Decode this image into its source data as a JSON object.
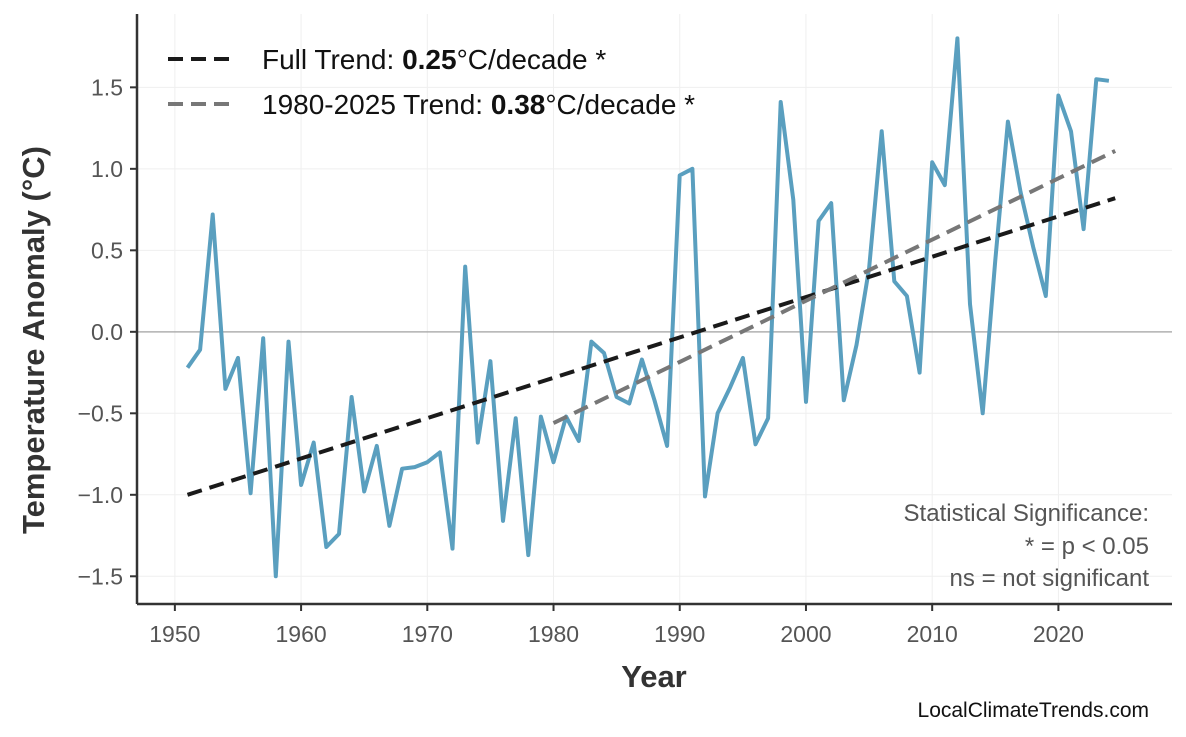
{
  "chart_data": {
    "type": "line",
    "xlabel": "Year",
    "ylabel": "Temperature Anomaly (°C)",
    "xlim": [
      1947,
      2029
    ],
    "ylim": [
      -1.67,
      1.95
    ],
    "xticks": [
      1950,
      1960,
      1970,
      1980,
      1990,
      2000,
      2010,
      2020
    ],
    "yticks": [
      -1.5,
      -1.0,
      -0.5,
      0.0,
      0.5,
      1.0,
      1.5
    ],
    "ytick_labels": [
      "−1.5",
      "−1.0",
      "−0.5",
      "0.0",
      "0.5",
      "1.0",
      "1.5"
    ],
    "xtick_labels": [
      "1950",
      "1960",
      "1970",
      "1980",
      "1990",
      "2000",
      "2010",
      "2020"
    ],
    "grid": true,
    "zero_line": true,
    "series": [
      {
        "color": "#5a9fbf",
        "x": [
          1951,
          1952,
          1953,
          1954,
          1955,
          1956,
          1957,
          1958,
          1959,
          1960,
          1961,
          1962,
          1963,
          1964,
          1965,
          1966,
          1967,
          1968,
          1969,
          1970,
          1971,
          1972,
          1973,
          1974,
          1975,
          1976,
          1977,
          1978,
          1979,
          1980,
          1981,
          1982,
          1983,
          1984,
          1985,
          1986,
          1987,
          1988,
          1989,
          1990,
          1991,
          1992,
          1993,
          1994,
          1995,
          1996,
          1997,
          1998,
          1999,
          2000,
          2001,
          2002,
          2003,
          2004,
          2005,
          2006,
          2007,
          2008,
          2009,
          2010,
          2011,
          2012,
          2013,
          2014,
          2015,
          2016,
          2017,
          2018,
          2019,
          2020,
          2021,
          2022,
          2023,
          2024
        ],
        "y": [
          -0.22,
          -0.11,
          0.72,
          -0.35,
          -0.16,
          -0.99,
          -0.04,
          -1.5,
          -0.06,
          -0.94,
          -0.68,
          -1.32,
          -1.24,
          -0.4,
          -0.98,
          -0.7,
          -1.19,
          -0.84,
          -0.83,
          -0.8,
          -0.74,
          -1.33,
          0.4,
          -0.68,
          -0.18,
          -1.16,
          -0.53,
          -1.37,
          -0.52,
          -0.8,
          -0.52,
          -0.67,
          -0.06,
          -0.13,
          -0.4,
          -0.44,
          -0.17,
          -0.42,
          -0.7,
          0.96,
          1.0,
          -1.01,
          -0.5,
          -0.34,
          -0.16,
          -0.69,
          -0.53,
          1.41,
          0.81,
          -0.43,
          0.68,
          0.79,
          -0.42,
          -0.08,
          0.39,
          1.23,
          0.31,
          0.22,
          -0.25,
          1.04,
          0.9,
          1.8,
          0.17,
          -0.5,
          0.44,
          1.29,
          0.86,
          0.52,
          0.22,
          1.45,
          1.23,
          0.63,
          1.55,
          1.54
        ]
      },
      {
        "name": "Full Trend",
        "color": "#1a1a1a",
        "dash": true,
        "x": [
          1951,
          2024.5
        ],
        "y": [
          -1.0,
          0.82
        ]
      },
      {
        "name": "1980-2025 Trend",
        "color": "#777777",
        "dash": true,
        "x": [
          1980,
          2024.5
        ],
        "y": [
          -0.56,
          1.11
        ]
      }
    ],
    "legend": {
      "position": "top-left",
      "items": [
        {
          "prefix": "Full Trend: ",
          "value": "0.25",
          "suffix": "°C/decade *"
        },
        {
          "prefix": "1980-2025 Trend: ",
          "value": "0.38",
          "suffix": "°C/decade *"
        }
      ]
    },
    "annotation": {
      "position": "bottom-right",
      "lines": [
        "Statistical Significance:",
        "* = p < 0.05",
        "ns = not significant"
      ]
    }
  },
  "footer": {
    "credit": "LocalClimateTrends.com"
  }
}
